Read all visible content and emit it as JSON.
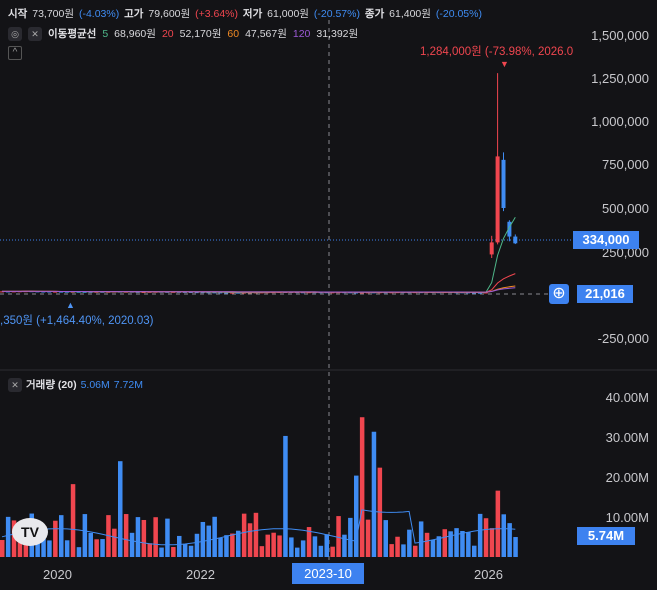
{
  "legend": {
    "open_label": "시작",
    "open_value": "73,700원",
    "open_pct": "(-4.03%)",
    "high_label": "고가",
    "high_value": "79,600원",
    "high_pct": "(+3.64%)",
    "low_label": "저가",
    "low_value": "61,000원",
    "low_pct": "(-20.57%)",
    "close_label": "종가",
    "close_value": "61,400원",
    "close_pct": "(-20.05%)"
  },
  "ma": {
    "title": "이동평균선",
    "items": [
      {
        "period": "5",
        "value": "68,960원",
        "color": "#4fb88a"
      },
      {
        "period": "20",
        "value": "52,170원",
        "color": "#f0464f"
      },
      {
        "period": "60",
        "value": "47,567원",
        "color": "#f08a24"
      },
      {
        "period": "120",
        "value": "31,392원",
        "color": "#9b59d6"
      }
    ]
  },
  "annotations": {
    "high": "1,284,000원 (-73.98%, 2026.0",
    "low": ",350원 (+1,464.40%, 2020.03)"
  },
  "price_axis": [
    "1,500,000",
    "1,250,000",
    "1,000,000",
    "750,000",
    "500,000",
    "250,000",
    "-250,000"
  ],
  "price_tag": "334,000",
  "zero_tag": "21,016",
  "volume": {
    "title": "거래량 (20)",
    "v1": "5.06M",
    "v2": "7.72M",
    "axis": [
      "40.00M",
      "30.00M",
      "20.00M",
      "10.00M"
    ],
    "tag": "5.74M"
  },
  "x_axis": [
    "2020",
    "2022",
    "2026"
  ],
  "crosshair_date": "2023-10",
  "colors": {
    "up": "#f0464f",
    "down": "#3f8cf3",
    "accent": "#3d82f0"
  },
  "chart_data": {
    "type": "candlestick",
    "price_axis_range": [
      -250000,
      1500000
    ],
    "volume_axis_range": [
      0,
      40000000
    ],
    "candles_sample_peak": {
      "high": 1284000,
      "close": 334000
    },
    "volume_ma_values": [
      5060000,
      7720000
    ]
  }
}
